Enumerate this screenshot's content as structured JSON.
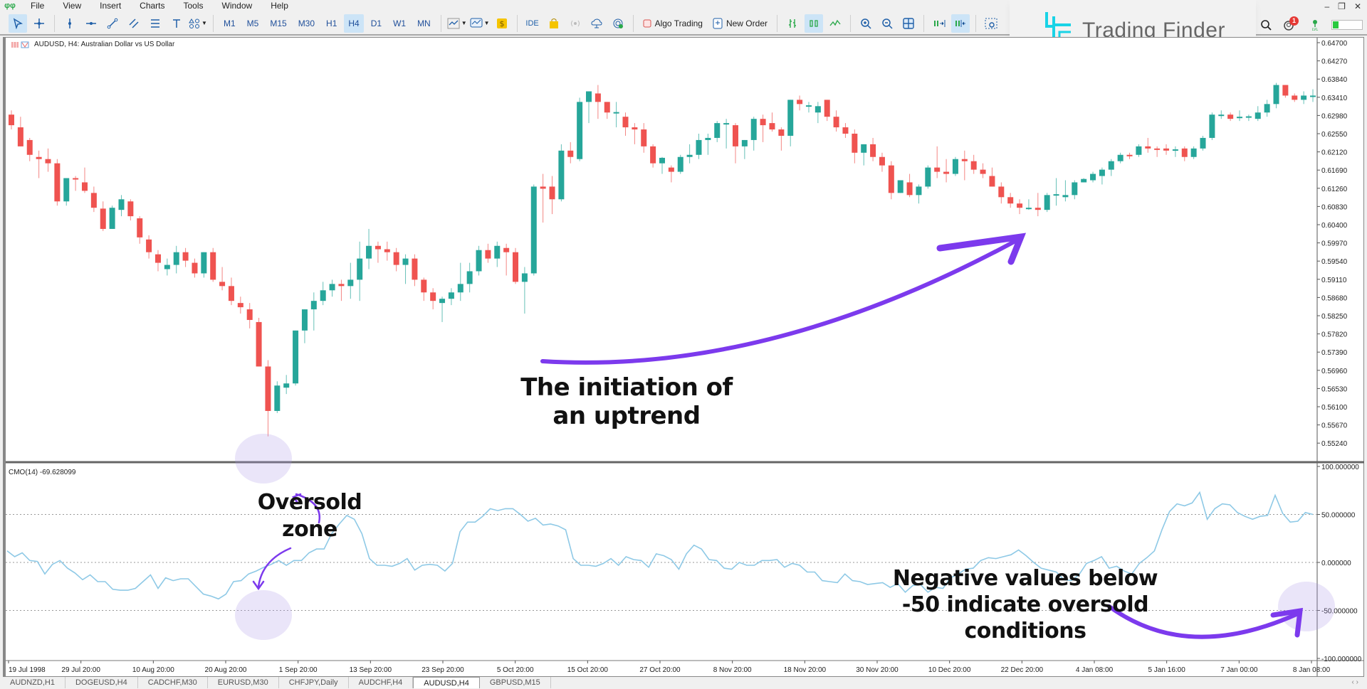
{
  "menu": {
    "items": [
      "File",
      "View",
      "Insert",
      "Charts",
      "Tools",
      "Window",
      "Help"
    ]
  },
  "toolbar": {
    "timeframes": [
      "M1",
      "M5",
      "M15",
      "M30",
      "H1",
      "H4",
      "D1",
      "W1",
      "MN"
    ],
    "active_timeframe": "H4",
    "ide_label": "IDE",
    "algo_trading_label": "Algo Trading",
    "new_order_label": "New Order"
  },
  "logo": {
    "text": "Trading Finder",
    "accent": "#19d3e6"
  },
  "notifications": {
    "count": "1"
  },
  "chart": {
    "title": "AUDUSD, H4:  Australian Dollar vs US Dollar",
    "bull_color": "#26a69a",
    "bear_color": "#ef5350",
    "price_axis": [
      "0.64700",
      "0.64270",
      "0.63840",
      "0.63410",
      "0.62980",
      "0.62550",
      "0.62120",
      "0.61690",
      "0.61260",
      "0.60830",
      "0.60400",
      "0.59970",
      "0.59540",
      "0.59110",
      "0.58680",
      "0.58250",
      "0.57820",
      "0.57390",
      "0.56960",
      "0.56530",
      "0.56100",
      "0.55670",
      "0.55240"
    ],
    "time_axis": [
      "19 Jul 1998",
      "29 Jul 20:00",
      "10 Aug 20:00",
      "20 Aug 20:00",
      "1 Sep 20:00",
      "13 Sep 20:00",
      "23 Sep 20:00",
      "5 Oct 20:00",
      "15 Oct 20:00",
      "27 Oct 20:00",
      "8 Nov 20:00",
      "18 Nov 20:00",
      "30 Nov 20:00",
      "10 Dec 20:00",
      "22 Dec 20:00",
      "4 Jan 08:00",
      "5 Jan 16:00",
      "7 Jan 00:00",
      "8 Jan 08:00"
    ]
  },
  "indicator": {
    "label": "CMO(14) -69.628099",
    "line_color": "#8ec9e6",
    "axis": [
      "100.000000",
      "50.000000",
      "0.000000",
      "-50.000000",
      "-100.000000"
    ]
  },
  "annotations": {
    "uptrend": "The initiation of an uptrend",
    "uptrend_line1": "The initiation of",
    "uptrend_line2": "an uptrend",
    "oversold_line1": "Oversold",
    "oversold_line2": "zone",
    "negative_line1": "Negative values below",
    "negative_line2": "-50 indicate oversold",
    "negative_line3": "conditions",
    "arrow_color": "#7c3aed"
  },
  "tabs": {
    "items": [
      "AUDNZD,H1",
      "DOGEUSD,H4",
      "CADCHF,M30",
      "EURUSD,M30",
      "CHFJPY,Daily",
      "AUDCHF,H4",
      "AUDUSD,H4",
      "GBPUSD,M15"
    ],
    "active": "AUDUSD,H4"
  },
  "chart_data": {
    "type": "candlestick",
    "title": "AUDUSD, H4",
    "ylim": [
      0.5505,
      0.649
    ],
    "candles": [
      [
        0.63,
        0.631,
        0.6265,
        0.6275
      ],
      [
        0.627,
        0.6295,
        0.6255,
        0.6225
      ],
      [
        0.624,
        0.6245,
        0.619,
        0.6205
      ],
      [
        0.62,
        0.6215,
        0.615,
        0.6195
      ],
      [
        0.6195,
        0.622,
        0.6165,
        0.6185
      ],
      [
        0.6185,
        0.6195,
        0.6085,
        0.6095
      ],
      [
        0.6095,
        0.615,
        0.6085,
        0.615
      ],
      [
        0.615,
        0.6155,
        0.612,
        0.6148
      ],
      [
        0.614,
        0.6175,
        0.6115,
        0.612
      ],
      [
        0.6115,
        0.613,
        0.607,
        0.608
      ],
      [
        0.6078,
        0.6095,
        0.6025,
        0.603
      ],
      [
        0.603,
        0.6085,
        0.603,
        0.608
      ],
      [
        0.6075,
        0.611,
        0.606,
        0.61
      ],
      [
        0.6095,
        0.61,
        0.605,
        0.606
      ],
      [
        0.6055,
        0.606,
        0.5995,
        0.601
      ],
      [
        0.6005,
        0.6015,
        0.596,
        0.5975
      ],
      [
        0.597,
        0.598,
        0.593,
        0.595
      ],
      [
        0.5935,
        0.596,
        0.592,
        0.5945
      ],
      [
        0.5945,
        0.599,
        0.5925,
        0.5975
      ],
      [
        0.5975,
        0.5985,
        0.594,
        0.5955
      ],
      [
        0.595,
        0.596,
        0.5915,
        0.5925
      ],
      [
        0.5925,
        0.5975,
        0.5915,
        0.5975
      ],
      [
        0.5975,
        0.5985,
        0.5905,
        0.591
      ],
      [
        0.5905,
        0.594,
        0.5885,
        0.5895
      ],
      [
        0.5895,
        0.5915,
        0.585,
        0.586
      ],
      [
        0.5855,
        0.587,
        0.583,
        0.5845
      ],
      [
        0.584,
        0.5855,
        0.5795,
        0.5815
      ],
      [
        0.581,
        0.582,
        0.571,
        0.5705
      ],
      [
        0.5705,
        0.572,
        0.554,
        0.56
      ],
      [
        0.56,
        0.567,
        0.5595,
        0.566
      ],
      [
        0.5655,
        0.5685,
        0.564,
        0.5665
      ],
      [
        0.5665,
        0.579,
        0.566,
        0.579
      ],
      [
        0.579,
        0.5825,
        0.576,
        0.584
      ],
      [
        0.584,
        0.588,
        0.579,
        0.586
      ],
      [
        0.586,
        0.5905,
        0.585,
        0.5885
      ],
      [
        0.5885,
        0.591,
        0.587,
        0.59
      ],
      [
        0.59,
        0.591,
        0.586,
        0.5895
      ],
      [
        0.5895,
        0.595,
        0.5865,
        0.591
      ],
      [
        0.591,
        0.6,
        0.586,
        0.596
      ],
      [
        0.596,
        0.603,
        0.5935,
        0.599
      ],
      [
        0.599,
        0.6,
        0.595,
        0.5982
      ],
      [
        0.5982,
        0.6,
        0.5955,
        0.5975
      ],
      [
        0.5975,
        0.5985,
        0.593,
        0.5945
      ],
      [
        0.5945,
        0.597,
        0.59,
        0.596
      ],
      [
        0.596,
        0.597,
        0.5895,
        0.591
      ],
      [
        0.591,
        0.5915,
        0.586,
        0.588
      ],
      [
        0.588,
        0.589,
        0.584,
        0.586
      ],
      [
        0.5855,
        0.587,
        0.581,
        0.5865
      ],
      [
        0.5865,
        0.589,
        0.585,
        0.588
      ],
      [
        0.588,
        0.595,
        0.586,
        0.59
      ],
      [
        0.59,
        0.595,
        0.588,
        0.593
      ],
      [
        0.593,
        0.599,
        0.592,
        0.598
      ],
      [
        0.598,
        0.5995,
        0.595,
        0.596
      ],
      [
        0.596,
        0.6,
        0.594,
        0.599
      ],
      [
        0.5985,
        0.5995,
        0.592,
        0.5975
      ],
      [
        0.5975,
        0.5985,
        0.59,
        0.5905
      ],
      [
        0.5905,
        0.594,
        0.583,
        0.5925
      ],
      [
        0.5925,
        0.6135,
        0.592,
        0.613
      ],
      [
        0.613,
        0.616,
        0.6045,
        0.6125
      ],
      [
        0.613,
        0.6155,
        0.6065,
        0.61
      ],
      [
        0.61,
        0.623,
        0.6095,
        0.6215
      ],
      [
        0.6215,
        0.6235,
        0.6185,
        0.62
      ],
      [
        0.6195,
        0.634,
        0.619,
        0.633
      ],
      [
        0.633,
        0.6355,
        0.628,
        0.6355
      ],
      [
        0.635,
        0.637,
        0.629,
        0.633
      ],
      [
        0.633,
        0.632,
        0.629,
        0.6305
      ],
      [
        0.6305,
        0.633,
        0.627,
        0.6306
      ],
      [
        0.6295,
        0.6305,
        0.625,
        0.627
      ],
      [
        0.627,
        0.628,
        0.623,
        0.6265
      ],
      [
        0.6265,
        0.628,
        0.621,
        0.6225
      ],
      [
        0.6225,
        0.623,
        0.6175,
        0.6185
      ],
      [
        0.6185,
        0.62,
        0.616,
        0.6198
      ],
      [
        0.6175,
        0.618,
        0.614,
        0.6165
      ],
      [
        0.6165,
        0.6205,
        0.616,
        0.62
      ],
      [
        0.62,
        0.623,
        0.6185,
        0.6205
      ],
      [
        0.6205,
        0.6255,
        0.6195,
        0.624
      ],
      [
        0.624,
        0.6255,
        0.6205,
        0.6245
      ],
      [
        0.6245,
        0.6285,
        0.6235,
        0.628
      ],
      [
        0.628,
        0.629,
        0.622,
        0.628
      ],
      [
        0.6275,
        0.628,
        0.6185,
        0.6225
      ],
      [
        0.6225,
        0.624,
        0.6195,
        0.624
      ],
      [
        0.624,
        0.6295,
        0.6215,
        0.629
      ],
      [
        0.629,
        0.63,
        0.6235,
        0.6275
      ],
      [
        0.628,
        0.6305,
        0.626,
        0.6265
      ],
      [
        0.6265,
        0.627,
        0.6215,
        0.625
      ],
      [
        0.625,
        0.6335,
        0.6225,
        0.6335
      ],
      [
        0.6335,
        0.6345,
        0.631,
        0.6325
      ],
      [
        0.632,
        0.633,
        0.6305,
        0.6322
      ],
      [
        0.6305,
        0.633,
        0.628,
        0.632
      ],
      [
        0.6335,
        0.6315,
        0.6285,
        0.6295
      ],
      [
        0.6295,
        0.631,
        0.626,
        0.627
      ],
      [
        0.627,
        0.628,
        0.6245,
        0.6255
      ],
      [
        0.6255,
        0.6265,
        0.6185,
        0.621
      ],
      [
        0.621,
        0.623,
        0.618,
        0.623
      ],
      [
        0.623,
        0.6245,
        0.619,
        0.62
      ],
      [
        0.62,
        0.621,
        0.6165,
        0.618
      ],
      [
        0.618,
        0.619,
        0.61,
        0.6115
      ],
      [
        0.6115,
        0.6145,
        0.612,
        0.6145
      ],
      [
        0.614,
        0.616,
        0.6105,
        0.611
      ],
      [
        0.611,
        0.6135,
        0.609,
        0.613
      ],
      [
        0.613,
        0.618,
        0.6125,
        0.6175
      ],
      [
        0.6175,
        0.6225,
        0.615,
        0.6165
      ],
      [
        0.6165,
        0.6195,
        0.614,
        0.616
      ],
      [
        0.616,
        0.62,
        0.6155,
        0.6195
      ],
      [
        0.6195,
        0.6215,
        0.6145,
        0.619
      ],
      [
        0.619,
        0.6205,
        0.616,
        0.617
      ],
      [
        0.617,
        0.6185,
        0.615,
        0.616
      ],
      [
        0.6155,
        0.6175,
        0.613,
        0.613
      ],
      [
        0.613,
        0.614,
        0.609,
        0.6105
      ],
      [
        0.6105,
        0.6115,
        0.608,
        0.609
      ],
      [
        0.609,
        0.61,
        0.6065,
        0.608
      ],
      [
        0.608,
        0.61,
        0.6075,
        0.608
      ],
      [
        0.608,
        0.6115,
        0.606,
        0.6075
      ],
      [
        0.6075,
        0.6115,
        0.607,
        0.611
      ],
      [
        0.611,
        0.615,
        0.6085,
        0.6112
      ],
      [
        0.6105,
        0.6145,
        0.6095,
        0.611
      ],
      [
        0.611,
        0.6145,
        0.61,
        0.614
      ],
      [
        0.614,
        0.615,
        0.614,
        0.6148
      ],
      [
        0.6145,
        0.6165,
        0.614,
        0.616
      ],
      [
        0.6155,
        0.6175,
        0.6135,
        0.617
      ],
      [
        0.617,
        0.6195,
        0.6155,
        0.619
      ],
      [
        0.619,
        0.621,
        0.6185,
        0.6205
      ],
      [
        0.6205,
        0.621,
        0.6195,
        0.6202
      ],
      [
        0.6205,
        0.623,
        0.62,
        0.6225
      ],
      [
        0.6225,
        0.6245,
        0.621,
        0.622
      ],
      [
        0.622,
        0.6225,
        0.62,
        0.6217
      ],
      [
        0.622,
        0.623,
        0.6205,
        0.6215
      ],
      [
        0.6215,
        0.6225,
        0.62,
        0.6218
      ],
      [
        0.622,
        0.6225,
        0.619,
        0.62
      ],
      [
        0.62,
        0.6225,
        0.6195,
        0.622
      ],
      [
        0.622,
        0.625,
        0.6215,
        0.6245
      ],
      [
        0.6245,
        0.6305,
        0.624,
        0.63
      ],
      [
        0.63,
        0.631,
        0.629,
        0.63
      ],
      [
        0.63,
        0.6305,
        0.6285,
        0.629
      ],
      [
        0.6295,
        0.631,
        0.6285,
        0.6295
      ],
      [
        0.6295,
        0.63,
        0.6285,
        0.6296
      ],
      [
        0.629,
        0.632,
        0.6285,
        0.6305
      ],
      [
        0.6305,
        0.6335,
        0.6295,
        0.6325
      ],
      [
        0.6325,
        0.6375,
        0.6315,
        0.637
      ],
      [
        0.637,
        0.6365,
        0.634,
        0.6345
      ],
      [
        0.6345,
        0.635,
        0.633,
        0.6335
      ],
      [
        0.6335,
        0.6355,
        0.6325,
        0.6345
      ],
      [
        0.6345,
        0.636,
        0.633,
        0.6345
      ]
    ],
    "cmo": [
      12,
      6,
      10,
      2,
      1,
      -12,
      -2,
      2,
      -6,
      -11,
      -18,
      -13,
      -20,
      -20,
      -28,
      -29,
      -29,
      -27,
      -20,
      -13,
      -27,
      -16,
      -19,
      -17,
      -17,
      -25,
      -33,
      -35,
      -38,
      -33,
      -20,
      -19,
      -12,
      -9,
      -5,
      -2,
      2,
      -3,
      2,
      2,
      10,
      14,
      14,
      30,
      40,
      49,
      45,
      30,
      4,
      -3,
      -3,
      -4,
      -1,
      4,
      -8,
      -3,
      -2,
      -3,
      -9,
      -1,
      32,
      42,
      42,
      48,
      56,
      54,
      56,
      56,
      50,
      43,
      46,
      39,
      40,
      38,
      34,
      4,
      -3,
      -3,
      -4,
      -1,
      4,
      -3,
      6,
      3,
      2,
      -5,
      9,
      7,
      3,
      -7,
      9,
      18,
      14,
      3,
      2,
      -6,
      -7,
      0,
      -3,
      -3,
      2,
      2,
      3,
      -5,
      -1,
      -3,
      -10,
      -10,
      -19,
      -20,
      -21,
      -12,
      -19,
      -20,
      -23,
      -22,
      -21,
      -26,
      -22,
      -31,
      -24,
      -23,
      -31,
      -26,
      -27,
      -16,
      -12,
      -7,
      -6,
      2,
      5,
      4,
      6,
      8,
      13,
      7,
      0,
      -6,
      -8,
      -10,
      -18,
      -19,
      -13,
      -1,
      2,
      6,
      -6,
      -4,
      -9,
      -12,
      -1,
      5,
      12,
      34,
      53,
      61,
      59,
      62,
      73,
      45,
      56,
      61,
      60,
      52,
      48,
      45,
      48,
      49,
      70,
      51,
      42,
      43,
      52,
      50
    ]
  }
}
